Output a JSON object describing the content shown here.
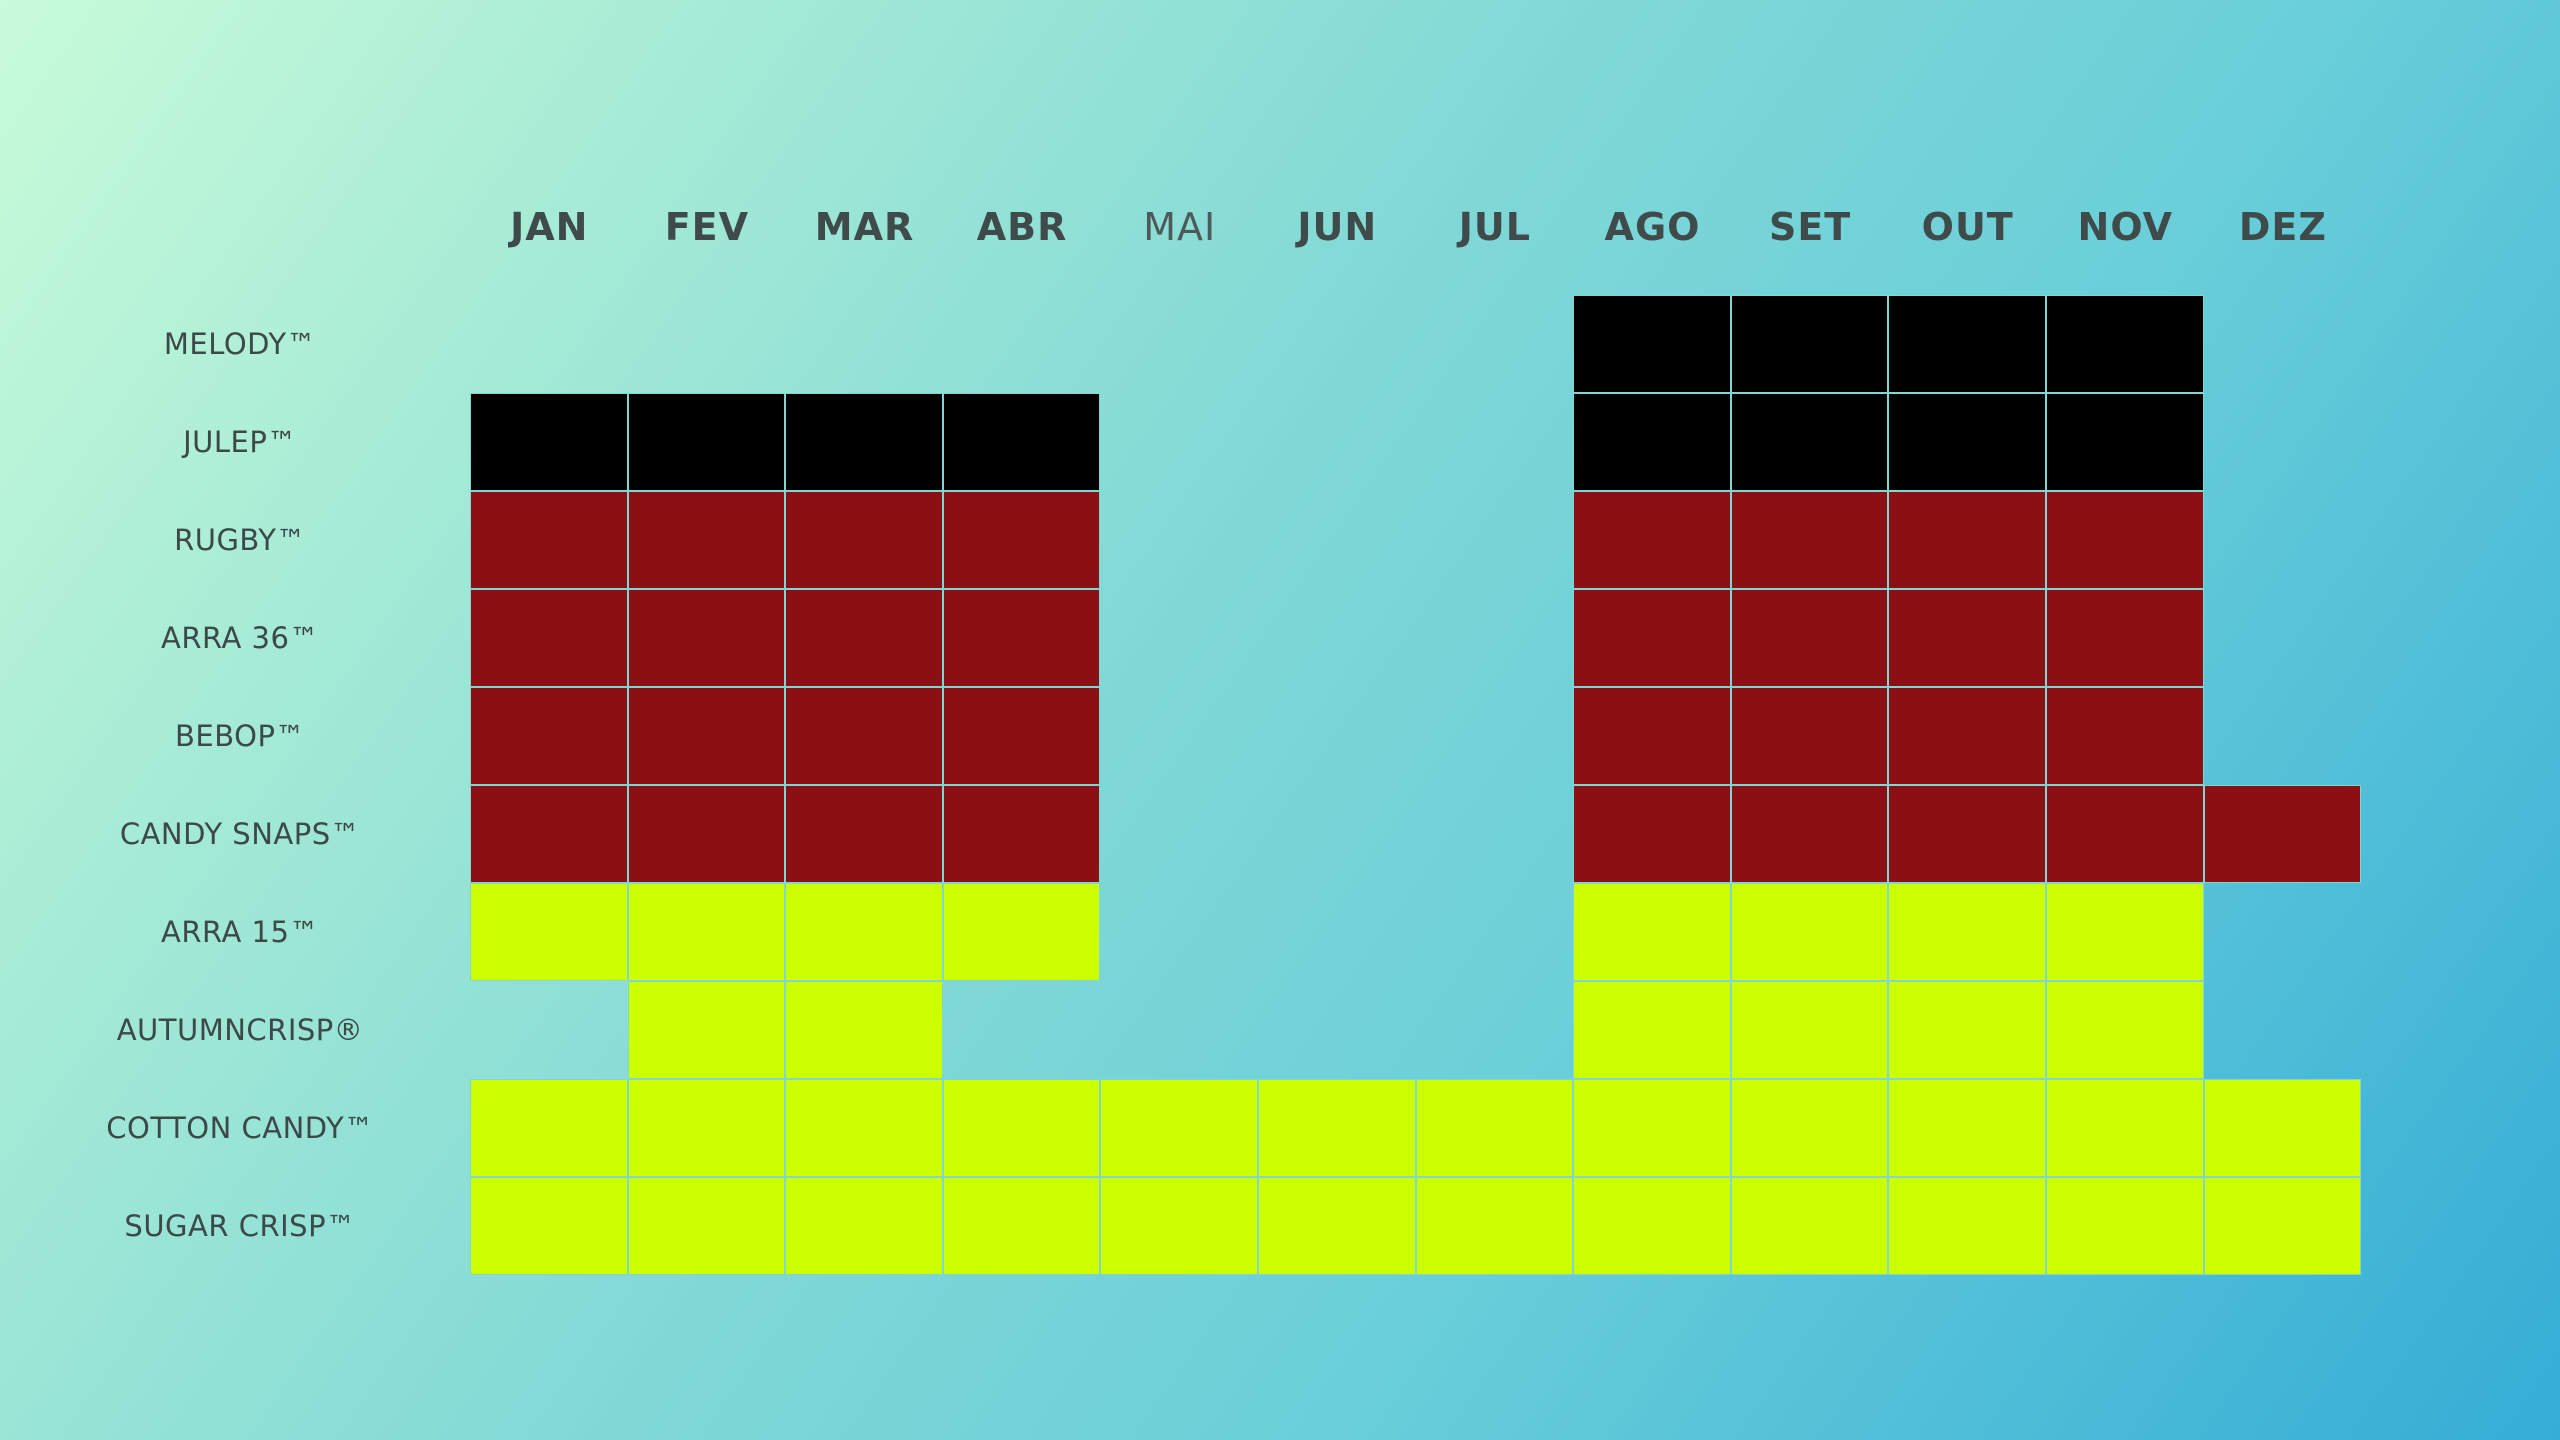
{
  "chart_data": {
    "type": "heatmap",
    "title": "",
    "xlabel": "",
    "ylabel": "",
    "x": [
      "JAN",
      "FEV",
      "MAR",
      "ABR",
      "MAI",
      "JUN",
      "JUL",
      "AGO",
      "SET",
      "OUT",
      "NOV",
      "DEZ"
    ],
    "y": [
      "MELODY™",
      "JULEP™",
      "RUGBY™",
      "ARRA 36™",
      "BEBOP™",
      "CANDY SNAPS™",
      "ARRA 15™",
      "AUTUMNCRISP®",
      "COTTON CANDY™",
      "SUGAR CRISP™"
    ],
    "colors": {
      "black": "#000000",
      "red": "#8b1014",
      "green": "#ccff00",
      "gridline": "#7fd6d3"
    },
    "values": [
      [
        "",
        "",
        "",
        "",
        "",
        "",
        "",
        "black",
        "black",
        "black",
        "black",
        ""
      ],
      [
        "black",
        "black",
        "black",
        "black",
        "",
        "",
        "",
        "black",
        "black",
        "black",
        "black",
        ""
      ],
      [
        "red",
        "red",
        "red",
        "red",
        "",
        "",
        "",
        "red",
        "red",
        "red",
        "red",
        ""
      ],
      [
        "red",
        "red",
        "red",
        "red",
        "",
        "",
        "",
        "red",
        "red",
        "red",
        "red",
        ""
      ],
      [
        "red",
        "red",
        "red",
        "red",
        "",
        "",
        "",
        "red",
        "red",
        "red",
        "red",
        ""
      ],
      [
        "red",
        "red",
        "red",
        "red",
        "",
        "",
        "",
        "red",
        "red",
        "red",
        "red",
        "red"
      ],
      [
        "green",
        "green",
        "green",
        "green",
        "",
        "",
        "",
        "green",
        "green",
        "green",
        "green",
        ""
      ],
      [
        "",
        "green",
        "green",
        "",
        "",
        "",
        "",
        "green",
        "green",
        "green",
        "green",
        ""
      ],
      [
        "green",
        "green",
        "green",
        "green",
        "green",
        "green",
        "green",
        "green",
        "green",
        "green",
        "green",
        "green"
      ],
      [
        "green",
        "green",
        "green",
        "green",
        "green",
        "green",
        "green",
        "green",
        "green",
        "green",
        "green",
        "green"
      ]
    ]
  }
}
